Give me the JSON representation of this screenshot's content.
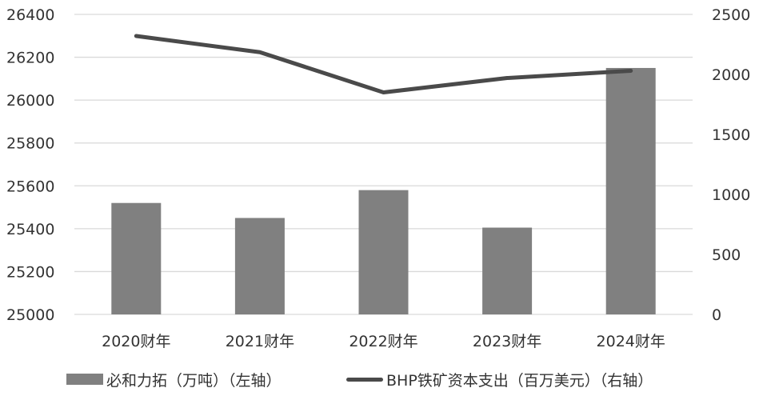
{
  "chart_data": {
    "type": "bar+line",
    "title": "",
    "categories": [
      "2020财年",
      "2021财年",
      "2022财年",
      "2023财年",
      "2024财年"
    ],
    "series": [
      {
        "name": "必和力拓（万吨）（左轴）",
        "type": "bar",
        "axis": "left",
        "color": "#808080",
        "values": [
          25520,
          25450,
          25580,
          25405,
          26150
        ]
      },
      {
        "name": "BHP铁矿资本支出（百万美元）（右轴）",
        "type": "line",
        "axis": "right",
        "color": "#4a4a4a",
        "values": [
          2320,
          2185,
          1850,
          1970,
          2030
        ]
      }
    ],
    "left_axis": {
      "min": 25000,
      "max": 26400,
      "ticks": [
        25000,
        25200,
        25400,
        25600,
        25800,
        26000,
        26200,
        26400
      ]
    },
    "right_axis": {
      "min": 0,
      "max": 2500,
      "ticks": [
        0,
        500,
        1000,
        1500,
        2000,
        2500
      ]
    },
    "xlabel": "",
    "ylabel_left": "",
    "ylabel_right": "",
    "grid": true,
    "legend_position": "bottom"
  },
  "legend": {
    "bar_label": "必和力拓（万吨）（左轴）",
    "line_label": "BHP铁矿资本支出（百万美元）（右轴）"
  },
  "colors": {
    "bar": "#808080",
    "line": "#4a4a4a",
    "grid": "#d9d9d9",
    "text": "#333333"
  }
}
